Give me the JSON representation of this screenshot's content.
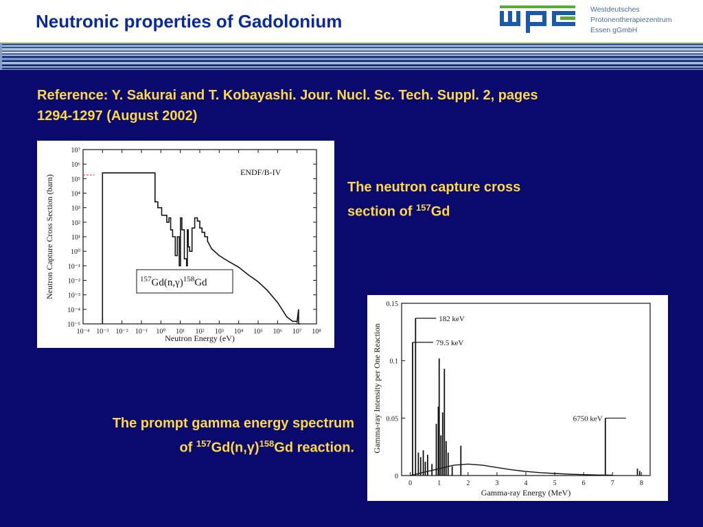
{
  "header": {
    "title": "Neutronic properties of Gadolonium",
    "logo": {
      "mark": "wpe",
      "line1": "Westdeutsches",
      "line2": "Protonentherapiezentrum",
      "line3": "Essen gGmbH"
    }
  },
  "reference": {
    "line1": "Reference: Y. Sakurai and T. Kobayashi. Jour. Nucl. Sc. Tech. Suppl. 2,  pages",
    "line2": "1294-1297 (August 2002)"
  },
  "captions": {
    "cross_section": {
      "line1": "The neutron capture cross",
      "line2_pre": "section of ",
      "line2_sup": "157",
      "line2_post": "Gd"
    },
    "spectrum": {
      "line1": "The prompt gamma energy spectrum",
      "line2_pre": "of ",
      "sup1": "157",
      "mid1": "Gd(n,",
      "gamma": "γ",
      "mid2": ")",
      "sup2": "158",
      "post": "Gd reaction."
    }
  },
  "colors": {
    "background": "#0a0a6e",
    "title": "#0a2a9a",
    "caption": "#ffd84a",
    "logo_blue": "#1a5aa8",
    "logo_green": "#5aaa3a"
  },
  "chart_data": [
    {
      "type": "line",
      "scale": "log-log",
      "label_box": {
        "pre": "157",
        "mid": "Gd(n,γ)",
        "post": "158",
        "end": "Gd"
      },
      "annotation": "ENDF/B-IV",
      "xlabel": "Neutron  Energy  (eV)",
      "ylabel": "Neutron  Capture  Cross  Section  (barn)",
      "x_ticks": [
        "10⁻⁴",
        "10⁻³",
        "10⁻²",
        "10⁻¹",
        "10⁰",
        "10¹",
        "10²",
        "10³",
        "10⁴",
        "10⁵",
        "10⁶",
        "10⁷",
        "10⁸"
      ],
      "y_ticks": [
        "10⁻⁵",
        "10⁻⁴",
        "10⁻³",
        "10⁻²",
        "10⁻¹",
        "10⁰",
        "10¹",
        "10²",
        "10³",
        "10⁴",
        "10⁵",
        "10⁶",
        "10⁷"
      ],
      "xlim": [
        0.0001,
        100000000
      ],
      "ylim": [
        1e-05,
        10000000
      ],
      "series": [
        {
          "x": [
            0.001,
            0.001,
            0.0013,
            0.5,
            0.5,
            0.7,
            0.7,
            1.1,
            1.1,
            2.0,
            2.0,
            2.6,
            2.6,
            3.2,
            3.2,
            4.0,
            4.0,
            5.5,
            5.5,
            7.0,
            7.0,
            8.8,
            8.8,
            10.2,
            10.2,
            12.0,
            12.0,
            16.0,
            16.0,
            21.0,
            21.0,
            23.0,
            23.0,
            25.5,
            25.5,
            30.0,
            30.0,
            40.0,
            40.0,
            55.0,
            55.0,
            75.0,
            75.0,
            100.0,
            100.0,
            130.0,
            130.0,
            180.0,
            180.0,
            250.0,
            250.0,
            400.0,
            1000.0,
            3000.0,
            10000.0,
            30000.0,
            100000.0,
            300000.0,
            1000000.0,
            3000000.0,
            6000000.0,
            10000000.0,
            12000000.0,
            12000000.0,
            14000000.0,
            14000000.0
          ],
          "y": [
            1e-05,
            250000,
            250000,
            250000,
            2500,
            2500,
            1000,
            1000,
            300,
            300,
            100,
            100,
            200,
            200,
            30,
            30,
            10,
            10,
            0.5,
            0.5,
            10,
            10,
            0.1,
            0.1,
            200,
            200,
            30,
            30,
            0.3,
            0.3,
            0.1,
            0.1,
            30,
            30,
            2,
            2,
            1,
            1,
            40,
            40,
            200,
            200,
            120,
            120,
            40,
            40,
            20,
            20,
            10,
            10,
            5,
            1.5,
            0.5,
            0.2,
            0.08,
            0.025,
            0.008,
            0.002,
            0.0003,
            3e-05,
            1.5e-05,
            1.5e-05,
            0.0001,
            1e-05,
            1e-05,
            1e-05
          ]
        }
      ]
    },
    {
      "type": "line",
      "xlabel": "Gamma-ray  Energy  (MeV)",
      "ylabel": "Gamma-ray  Intensity  per  One  Reaction",
      "x_ticks": [
        "0",
        "1",
        "2",
        "3",
        "4",
        "5",
        "6",
        "7",
        "8"
      ],
      "y_ticks": [
        "0",
        "0.05",
        "0.1",
        "0.15"
      ],
      "xlim": [
        -0.3,
        8.3
      ],
      "ylim": [
        0,
        0.15
      ],
      "annotations": [
        {
          "label": "182 keV",
          "x": 0.182,
          "y": 0.137
        },
        {
          "label": "79.5 keV",
          "x": 0.0795,
          "y": 0.116
        },
        {
          "label": "6750 keV",
          "x": 6.75,
          "y": 0.05
        }
      ],
      "lines": [
        {
          "x": 0.0795,
          "y": 0.116
        },
        {
          "x": 0.182,
          "y": 0.137
        },
        {
          "x": 0.28,
          "y": 0.02
        },
        {
          "x": 0.36,
          "y": 0.016
        },
        {
          "x": 0.45,
          "y": 0.022
        },
        {
          "x": 0.52,
          "y": 0.012
        },
        {
          "x": 0.6,
          "y": 0.018
        },
        {
          "x": 0.75,
          "y": 0.01
        },
        {
          "x": 0.9,
          "y": 0.045
        },
        {
          "x": 0.97,
          "y": 0.06
        },
        {
          "x": 1.0,
          "y": 0.102
        },
        {
          "x": 1.06,
          "y": 0.035
        },
        {
          "x": 1.12,
          "y": 0.055
        },
        {
          "x": 1.18,
          "y": 0.093
        },
        {
          "x": 1.24,
          "y": 0.03
        },
        {
          "x": 1.31,
          "y": 0.02
        },
        {
          "x": 1.45,
          "y": 0.008
        },
        {
          "x": 1.75,
          "y": 0.026
        },
        {
          "x": 6.75,
          "y": 0.05
        },
        {
          "x": 7.86,
          "y": 0.006
        },
        {
          "x": 7.94,
          "y": 0.004
        }
      ],
      "continuum": {
        "x": [
          0.0,
          0.5,
          1.0,
          1.5,
          2.0,
          2.5,
          3.0,
          3.5,
          4.0,
          4.5,
          5.0,
          5.5,
          6.0,
          6.5,
          7.0
        ],
        "y": [
          0.0,
          0.003,
          0.006,
          0.009,
          0.01,
          0.009,
          0.007,
          0.005,
          0.0035,
          0.0025,
          0.0018,
          0.0012,
          0.0008,
          0.0005,
          0.0003
        ]
      }
    }
  ]
}
